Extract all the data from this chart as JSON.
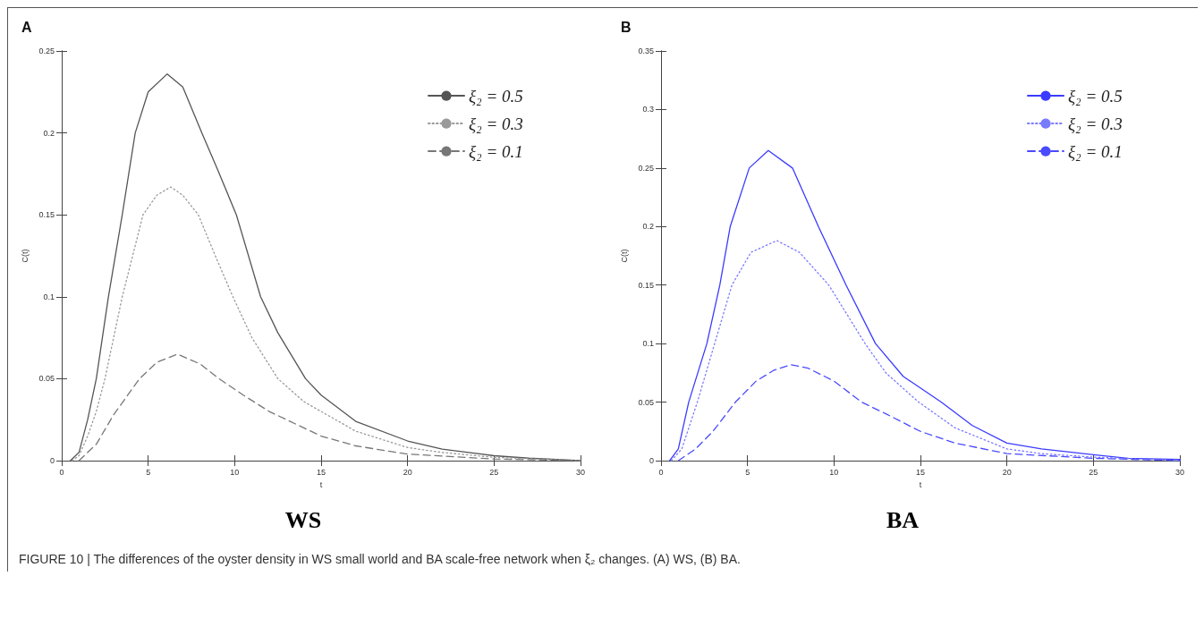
{
  "chart_data": [
    {
      "type": "line",
      "title": "A",
      "xlabel": "t",
      "ylabel": "C(t)",
      "annotations": [
        "WS",
        "FIGURE 10 | The differences of the oyster density in WS small world and BA scale-free network when ξ₂ changes. (A) WS, (B) BA."
      ],
      "xlim": [
        0,
        30
      ],
      "xticks": [
        0,
        5,
        10,
        15,
        20,
        25,
        30
      ],
      "ylim": [
        0,
        0.25
      ],
      "yticks": [
        0,
        0.05,
        0.1,
        0.15,
        0.2,
        0.25
      ],
      "grid": false,
      "legend": "top right",
      "marker": "none",
      "series": [
        {
          "name": "ξ₂ = 0.5",
          "color": "#555555",
          "line_style": "solid",
          "x": [
            0.5,
            1,
            1.5,
            2,
            2.7,
            3.5,
            4.25,
            5,
            6.1,
            7,
            8.1,
            9,
            10.1,
            11.5,
            12.5,
            14.1,
            15,
            17,
            20,
            22,
            25,
            27,
            30
          ],
          "values": [
            0,
            0.005,
            0.025,
            0.05,
            0.1,
            0.15,
            0.2,
            0.225,
            0.236,
            0.228,
            0.2,
            0.178,
            0.15,
            0.1,
            0.078,
            0.05,
            0.04,
            0.024,
            0.012,
            0.007,
            0.003,
            0.0015,
            0
          ]
        },
        {
          "name": "ξ₂ = 0.3",
          "color": "#9a9a9a",
          "line_style": "dotted",
          "x": [
            0.6,
            1,
            1.5,
            2,
            2.5,
            3.5,
            4.7,
            5.5,
            6.3,
            7,
            7.9,
            9,
            9.9,
            11,
            12.5,
            14,
            15,
            17,
            20,
            22,
            25,
            30
          ],
          "values": [
            0,
            0.003,
            0.015,
            0.03,
            0.05,
            0.1,
            0.15,
            0.162,
            0.167,
            0.162,
            0.15,
            0.122,
            0.1,
            0.075,
            0.05,
            0.036,
            0.03,
            0.018,
            0.008,
            0.005,
            0.002,
            0
          ]
        },
        {
          "name": "ξ₂ = 0.1",
          "color": "#777777",
          "line_style": "dashed",
          "x": [
            1,
            2,
            3,
            4.5,
            5.5,
            6.7,
            8,
            9.1,
            10.5,
            12,
            15,
            17,
            20,
            25,
            30
          ],
          "values": [
            0,
            0.01,
            0.028,
            0.05,
            0.06,
            0.065,
            0.059,
            0.05,
            0.04,
            0.03,
            0.015,
            0.009,
            0.004,
            0.001,
            0
          ]
        }
      ]
    },
    {
      "type": "line",
      "title": "B",
      "xlabel": "t",
      "ylabel": "C(t)",
      "annotations": [
        "BA"
      ],
      "xlim": [
        0,
        30
      ],
      "xticks": [
        0,
        5,
        10,
        15,
        20,
        25,
        30
      ],
      "ylim": [
        0,
        0.35
      ],
      "yticks": [
        0,
        0.05,
        0.1,
        0.15,
        0.2,
        0.25,
        0.3,
        0.35
      ],
      "grid": false,
      "legend": "top right",
      "marker": "none",
      "series": [
        {
          "name": "ξ₂ = 0.5",
          "color": "#3b3bff",
          "line_style": "solid",
          "x": [
            0.5,
            1,
            1.6,
            2.65,
            3.4,
            4,
            5.1,
            6.2,
            7.6,
            9.1,
            10.7,
            12.4,
            14,
            16.2,
            18,
            20,
            22,
            25,
            27,
            30
          ],
          "values": [
            0,
            0.01,
            0.05,
            0.1,
            0.15,
            0.2,
            0.25,
            0.265,
            0.25,
            0.2,
            0.15,
            0.1,
            0.072,
            0.05,
            0.03,
            0.015,
            0.01,
            0.005,
            0.002,
            0.001
          ]
        },
        {
          "name": "ξ₂ = 0.3",
          "color": "#7a7aff",
          "line_style": "dotted",
          "x": [
            0.6,
            1.2,
            2.1,
            3.1,
            4.1,
            5.2,
            6.7,
            8,
            9.7,
            11.8,
            13,
            14.9,
            17,
            20,
            22,
            25,
            30
          ],
          "values": [
            0,
            0.01,
            0.05,
            0.1,
            0.15,
            0.178,
            0.188,
            0.178,
            0.15,
            0.1,
            0.075,
            0.05,
            0.028,
            0.01,
            0.006,
            0.003,
            0
          ]
        },
        {
          "name": "ξ₂ = 0.1",
          "color": "#4a4aff",
          "line_style": "dashed",
          "x": [
            1,
            2,
            3,
            4.3,
            5.5,
            6.5,
            7.5,
            8.5,
            10,
            11.6,
            13,
            15,
            17,
            20,
            25,
            30
          ],
          "values": [
            0,
            0.01,
            0.025,
            0.05,
            0.068,
            0.077,
            0.082,
            0.079,
            0.068,
            0.05,
            0.04,
            0.025,
            0.015,
            0.006,
            0.002,
            0
          ]
        }
      ]
    }
  ]
}
